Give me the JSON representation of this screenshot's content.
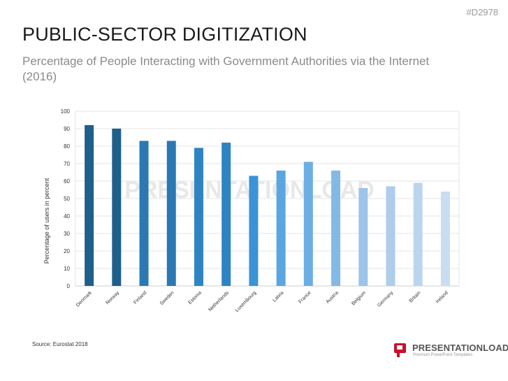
{
  "slide": {
    "id": "#D2978",
    "title": "PUBLIC-SECTOR DIGITIZATION",
    "subtitle": "Percentage of People Interacting with Government Authorities via the Internet (2016)",
    "source": "Source: Eurostat 2018",
    "watermark": "PRESENTATIONLOAD",
    "logo": {
      "name": "PRESENTATIONLOAD",
      "tagline": "Premium PowerPoint Templates",
      "color": "#c8102e"
    }
  },
  "chart_data": {
    "type": "bar",
    "title": "",
    "xlabel": "",
    "ylabel": "Percentage of users in percent",
    "ylim": [
      0,
      100
    ],
    "yticks": [
      0,
      10,
      20,
      30,
      40,
      50,
      60,
      70,
      80,
      90,
      100
    ],
    "grid": true,
    "categories": [
      "Denmark",
      "Norway",
      "Finland",
      "Sweden",
      "Estonia",
      "Netherlands",
      "Luxembourg",
      "Latvia",
      "France",
      "Austria",
      "Belgium",
      "Germany",
      "Britain",
      "Ireland"
    ],
    "values": [
      92,
      90,
      83,
      83,
      79,
      82,
      63,
      66,
      71,
      66,
      56,
      57,
      59,
      54
    ],
    "colors": [
      "#1f5f8b",
      "#1f5f8b",
      "#2a79b3",
      "#2a79b3",
      "#2e84c2",
      "#2e84c2",
      "#3a93d6",
      "#5aa6e0",
      "#6baee3",
      "#84b9e6",
      "#9dc4ea",
      "#aecdec",
      "#bcd5ef",
      "#c9ddf2"
    ]
  }
}
